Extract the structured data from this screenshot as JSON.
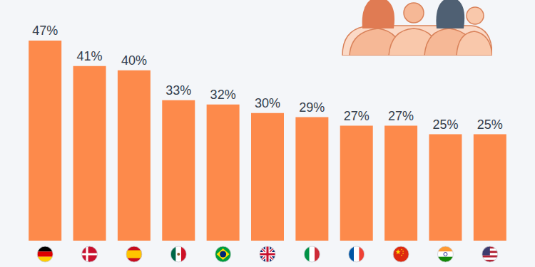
{
  "chart_data": {
    "type": "bar",
    "categories": [
      null,
      null,
      null,
      null,
      null,
      null,
      null,
      null,
      null,
      null,
      null
    ],
    "values": [
      47,
      41,
      40,
      33,
      32,
      30,
      29,
      27,
      27,
      25,
      25
    ],
    "value_labels": [
      "47%",
      "41%",
      "40%",
      "33%",
      "32%",
      "30%",
      "29%",
      "27%",
      "27%",
      "25%",
      "25%"
    ],
    "color": "#fd8a4b",
    "ylim": [
      0,
      47
    ],
    "grid": false,
    "data_labels": true,
    "tick_labels": false
  }
}
